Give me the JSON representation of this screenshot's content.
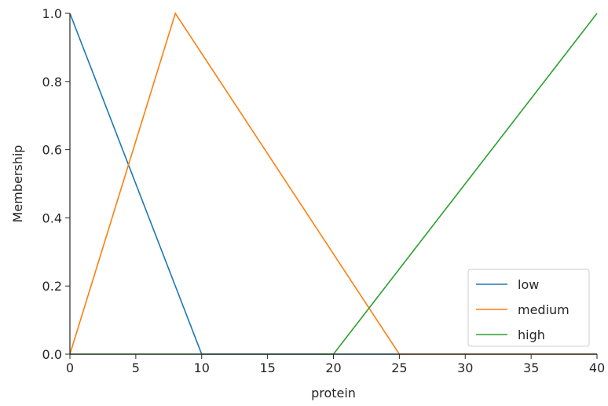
{
  "chart_data": {
    "type": "line",
    "title": "",
    "xlabel": "protein",
    "ylabel": "Membership",
    "xlim": [
      0,
      40
    ],
    "ylim": [
      0,
      1
    ],
    "xticks": [
      0,
      5,
      10,
      15,
      20,
      25,
      30,
      35,
      40
    ],
    "yticks": [
      0.0,
      0.2,
      0.4,
      0.6,
      0.8,
      1.0
    ],
    "xtick_labels": [
      "0",
      "5",
      "10",
      "15",
      "20",
      "25",
      "30",
      "35",
      "40"
    ],
    "ytick_labels": [
      "0.0",
      "0.2",
      "0.4",
      "0.6",
      "0.8",
      "1.0"
    ],
    "grid": false,
    "legend_position": "bottom-right",
    "series": [
      {
        "name": "low",
        "color": "#1f77b4",
        "x": [
          0,
          10,
          40
        ],
        "y": [
          1,
          0,
          0
        ]
      },
      {
        "name": "medium",
        "color": "#ff7f0e",
        "x": [
          0,
          8,
          25,
          40
        ],
        "y": [
          0,
          1,
          0,
          0
        ]
      },
      {
        "name": "high",
        "color": "#2ca02c",
        "x": [
          0,
          20,
          40
        ],
        "y": [
          0,
          0,
          1
        ]
      }
    ]
  }
}
